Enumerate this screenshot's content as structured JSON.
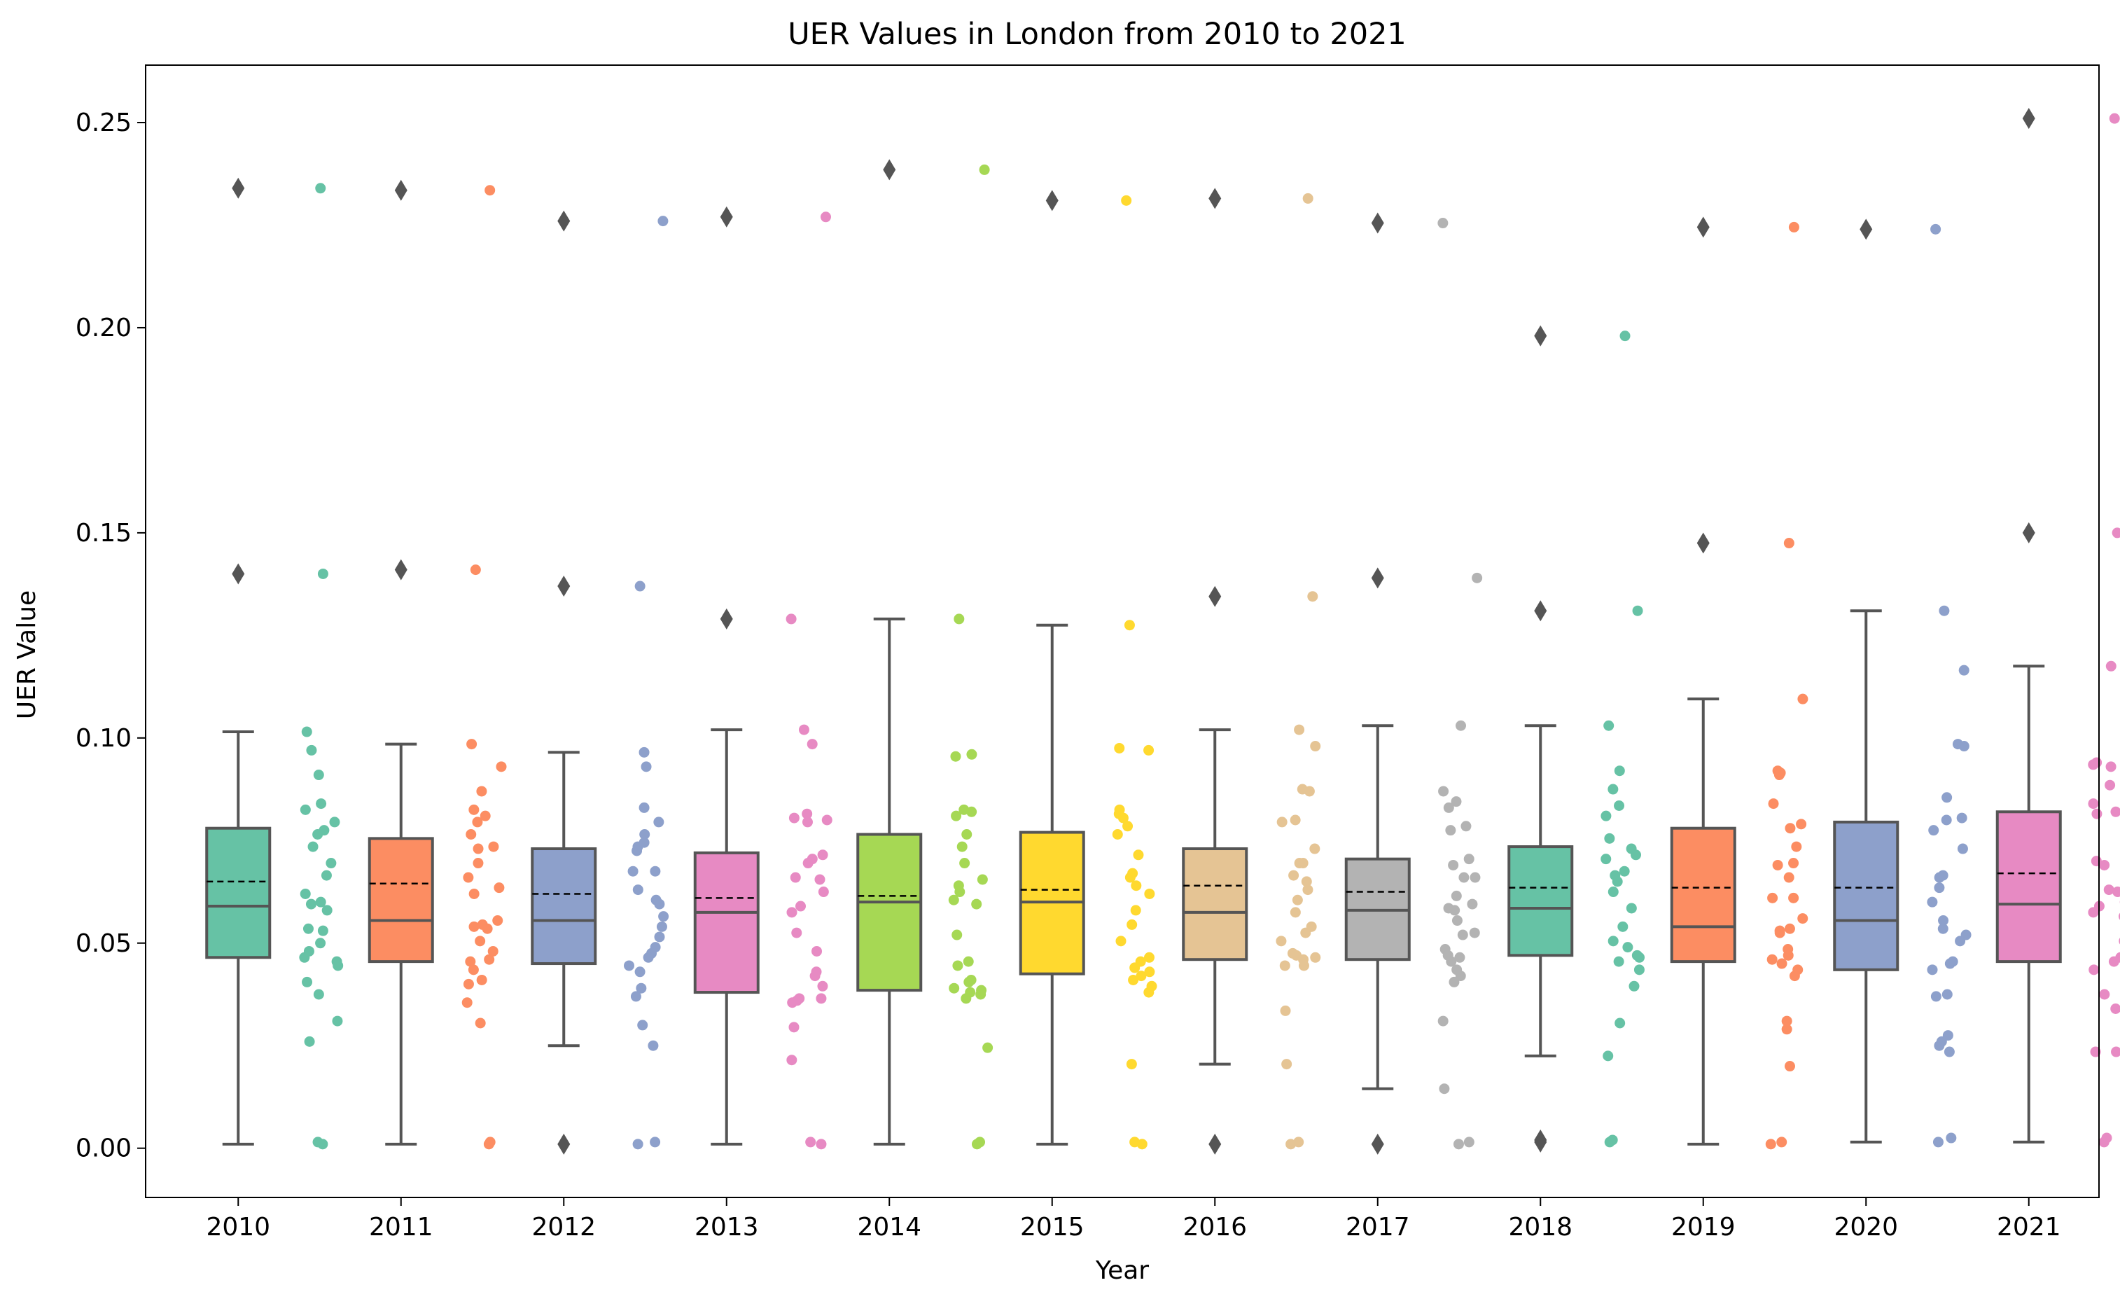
{
  "chart_data": {
    "type": "box",
    "title": "UER Values in London from 2010 to 2021",
    "xlabel": "Year",
    "ylabel": "UER Value",
    "ylim": [
      -0.012,
      0.264
    ],
    "yticks": [
      "0.00",
      "0.05",
      "0.10",
      "0.15",
      "0.20",
      "0.25"
    ],
    "ytick_values": [
      0,
      0.05,
      0.1,
      0.15,
      0.2,
      0.25
    ],
    "grid": false,
    "legend": "none",
    "box_line_color": "#555555",
    "mean_line": "dashed",
    "categories": [
      "2010",
      "2011",
      "2012",
      "2013",
      "2014",
      "2015",
      "2016",
      "2017",
      "2018",
      "2019",
      "2020",
      "2021"
    ],
    "colors": [
      "#66c2a5",
      "#fc8d62",
      "#8da0cb",
      "#e78ac3",
      "#a6d854",
      "#ffd92f",
      "#e5c494",
      "#b3b3b3",
      "#66c2a5",
      "#fc8d62",
      "#8da0cb",
      "#e78ac3"
    ],
    "series": [
      {
        "year": "2010",
        "q1": 0.0465,
        "median": 0.059,
        "q3": 0.078,
        "mean": 0.065,
        "whisker_low": 0.001,
        "whisker_high": 0.1015,
        "outliers": [
          0.14,
          0.234
        ],
        "points": [
          0.234,
          0.14,
          0.1015,
          0.097,
          0.091,
          0.084,
          0.0825,
          0.0795,
          0.0775,
          0.0765,
          0.0735,
          0.0695,
          0.0665,
          0.062,
          0.06,
          0.0595,
          0.058,
          0.0535,
          0.053,
          0.05,
          0.048,
          0.0465,
          0.0455,
          0.0445,
          0.0405,
          0.0375,
          0.031,
          0.026,
          0.0015,
          0.001
        ]
      },
      {
        "year": "2011",
        "q1": 0.0455,
        "median": 0.0555,
        "q3": 0.0755,
        "mean": 0.0645,
        "whisker_low": 0.001,
        "whisker_high": 0.0985,
        "outliers": [
          0.141,
          0.2335
        ],
        "points": [
          0.2335,
          0.141,
          0.0985,
          0.093,
          0.087,
          0.0825,
          0.081,
          0.0795,
          0.0765,
          0.0735,
          0.073,
          0.0695,
          0.066,
          0.0635,
          0.062,
          0.0555,
          0.0545,
          0.054,
          0.0535,
          0.0505,
          0.048,
          0.046,
          0.0455,
          0.0435,
          0.041,
          0.04,
          0.0355,
          0.0305,
          0.0015,
          0.001
        ]
      },
      {
        "year": "2012",
        "q1": 0.045,
        "median": 0.0555,
        "q3": 0.073,
        "mean": 0.062,
        "whisker_low": 0.025,
        "whisker_high": 0.0965,
        "outliers": [
          0.001,
          0.137,
          0.226
        ],
        "points": [
          0.226,
          0.137,
          0.0965,
          0.093,
          0.083,
          0.0795,
          0.0765,
          0.0745,
          0.0735,
          0.0725,
          0.0675,
          0.0675,
          0.063,
          0.0605,
          0.0595,
          0.0565,
          0.054,
          0.0515,
          0.049,
          0.0475,
          0.0465,
          0.0445,
          0.043,
          0.039,
          0.037,
          0.03,
          0.025,
          0.0015,
          0.001
        ]
      },
      {
        "year": "2013",
        "q1": 0.038,
        "median": 0.0575,
        "q3": 0.072,
        "mean": 0.061,
        "whisker_low": 0.001,
        "whisker_high": 0.102,
        "outliers": [
          0.129,
          0.227
        ],
        "points": [
          0.227,
          0.129,
          0.102,
          0.0985,
          0.0815,
          0.0805,
          0.08,
          0.0795,
          0.0715,
          0.0705,
          0.0695,
          0.066,
          0.0655,
          0.0625,
          0.059,
          0.0575,
          0.0525,
          0.048,
          0.043,
          0.042,
          0.0395,
          0.0365,
          0.0365,
          0.036,
          0.0355,
          0.0295,
          0.0215,
          0.0015,
          0.001
        ]
      },
      {
        "year": "2014",
        "q1": 0.0385,
        "median": 0.06,
        "q3": 0.0765,
        "mean": 0.0615,
        "whisker_low": 0.001,
        "whisker_high": 0.129,
        "outliers": [
          0.2385
        ],
        "points": [
          0.2385,
          0.129,
          0.096,
          0.0955,
          0.0825,
          0.082,
          0.081,
          0.0765,
          0.0735,
          0.0695,
          0.0655,
          0.064,
          0.0625,
          0.0605,
          0.0595,
          0.052,
          0.0455,
          0.0445,
          0.041,
          0.0405,
          0.039,
          0.0385,
          0.038,
          0.0375,
          0.0365,
          0.0245,
          0.0015,
          0.001
        ]
      },
      {
        "year": "2015",
        "q1": 0.0425,
        "median": 0.06,
        "q3": 0.077,
        "mean": 0.063,
        "whisker_low": 0.001,
        "whisker_high": 0.1275,
        "outliers": [
          0.231
        ],
        "points": [
          0.231,
          0.1275,
          0.0975,
          0.097,
          0.0825,
          0.0815,
          0.0805,
          0.0785,
          0.0765,
          0.0715,
          0.067,
          0.066,
          0.064,
          0.062,
          0.058,
          0.0545,
          0.0505,
          0.0465,
          0.0455,
          0.044,
          0.043,
          0.042,
          0.041,
          0.0395,
          0.038,
          0.0205,
          0.0015,
          0.001
        ]
      },
      {
        "year": "2016",
        "q1": 0.046,
        "median": 0.0575,
        "q3": 0.073,
        "mean": 0.064,
        "whisker_low": 0.0205,
        "whisker_high": 0.102,
        "outliers": [
          0.001,
          0.1345,
          0.2315
        ],
        "points": [
          0.2315,
          0.1345,
          0.102,
          0.098,
          0.0875,
          0.087,
          0.08,
          0.0795,
          0.073,
          0.0695,
          0.0695,
          0.0665,
          0.065,
          0.063,
          0.0605,
          0.0575,
          0.054,
          0.0525,
          0.0505,
          0.0475,
          0.047,
          0.0465,
          0.046,
          0.0445,
          0.0445,
          0.0335,
          0.0205,
          0.0015,
          0.001
        ]
      },
      {
        "year": "2017",
        "q1": 0.046,
        "median": 0.058,
        "q3": 0.0705,
        "mean": 0.0625,
        "whisker_low": 0.0145,
        "whisker_high": 0.103,
        "outliers": [
          0.001,
          0.139,
          0.2255
        ],
        "points": [
          0.2255,
          0.139,
          0.103,
          0.087,
          0.0845,
          0.083,
          0.0785,
          0.0775,
          0.0705,
          0.069,
          0.066,
          0.066,
          0.0615,
          0.0595,
          0.0585,
          0.058,
          0.0555,
          0.0525,
          0.052,
          0.0485,
          0.047,
          0.0465,
          0.0455,
          0.0435,
          0.042,
          0.0405,
          0.031,
          0.0145,
          0.0015,
          0.001
        ]
      },
      {
        "year": "2018",
        "q1": 0.047,
        "median": 0.0585,
        "q3": 0.0735,
        "mean": 0.0635,
        "whisker_low": 0.0225,
        "whisker_high": 0.103,
        "outliers": [
          0.0015,
          0.002,
          0.131,
          0.198
        ],
        "points": [
          0.198,
          0.131,
          0.103,
          0.092,
          0.0875,
          0.0835,
          0.081,
          0.0755,
          0.073,
          0.0715,
          0.0705,
          0.0675,
          0.0665,
          0.065,
          0.0625,
          0.0585,
          0.054,
          0.0505,
          0.049,
          0.047,
          0.0465,
          0.0455,
          0.0435,
          0.0395,
          0.0305,
          0.0225,
          0.002,
          0.0015
        ]
      },
      {
        "year": "2019",
        "q1": 0.0455,
        "median": 0.054,
        "q3": 0.078,
        "mean": 0.0635,
        "whisker_low": 0.001,
        "whisker_high": 0.1095,
        "outliers": [
          0.1475,
          0.2245
        ],
        "points": [
          0.2245,
          0.1475,
          0.1095,
          0.092,
          0.0915,
          0.091,
          0.084,
          0.079,
          0.078,
          0.0735,
          0.0695,
          0.069,
          0.066,
          0.061,
          0.061,
          0.056,
          0.0535,
          0.053,
          0.0525,
          0.0485,
          0.047,
          0.046,
          0.045,
          0.0435,
          0.042,
          0.031,
          0.029,
          0.02,
          0.0015,
          0.001
        ]
      },
      {
        "year": "2020",
        "q1": 0.0435,
        "median": 0.0555,
        "q3": 0.0795,
        "mean": 0.0635,
        "whisker_low": 0.0015,
        "whisker_high": 0.131,
        "outliers": [
          0.224
        ],
        "points": [
          0.224,
          0.131,
          0.1165,
          0.0985,
          0.098,
          0.0855,
          0.0805,
          0.08,
          0.0775,
          0.073,
          0.0665,
          0.066,
          0.0635,
          0.06,
          0.0555,
          0.0535,
          0.052,
          0.0505,
          0.0455,
          0.045,
          0.0435,
          0.0375,
          0.037,
          0.0275,
          0.026,
          0.025,
          0.0235,
          0.0025,
          0.0015
        ]
      },
      {
        "year": "2021",
        "q1": 0.0455,
        "median": 0.0595,
        "q3": 0.082,
        "mean": 0.067,
        "whisker_low": 0.0015,
        "whisker_high": 0.1175,
        "outliers": [
          0.15,
          0.251
        ],
        "points": [
          0.251,
          0.15,
          0.1175,
          0.094,
          0.0935,
          0.093,
          0.0885,
          0.084,
          0.082,
          0.0815,
          0.07,
          0.069,
          0.063,
          0.0625,
          0.062,
          0.06,
          0.059,
          0.0575,
          0.0565,
          0.051,
          0.0505,
          0.0465,
          0.0455,
          0.0445,
          0.0435,
          0.0375,
          0.034,
          0.0235,
          0.0235,
          0.0025,
          0.0015
        ]
      }
    ]
  }
}
